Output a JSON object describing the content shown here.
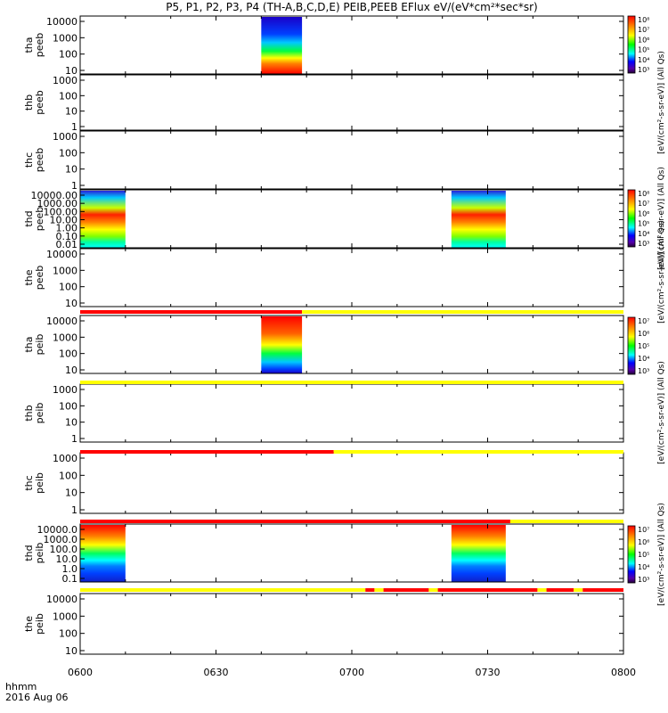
{
  "header": {
    "title": "P5, P1, P2, P3, P4 (TH-A,B,C,D,E) PEIB,PEEB EFlux eV/(eV*cm²*sec*sr)"
  },
  "footer": {
    "time_label": "hhmm",
    "date_label": "2016 Aug 06"
  },
  "colors": {
    "red": "#ff0000",
    "yellow": "#ffff00",
    "frame": "#000000"
  },
  "chart_data": {
    "type": "heatmap",
    "x_axis": {
      "range": [
        "0600",
        "0800"
      ],
      "ticks": [
        "0600",
        "0630",
        "0700",
        "0730",
        "0800"
      ]
    },
    "colorbar_label": "[eV/(cm²-s-sr-eV)] (All Qs)",
    "panels": [
      {
        "name": "tha_peeb",
        "ylabel": "tha peeb",
        "yscale": "log",
        "tick_labels": [
          "10000",
          "1000",
          "100",
          "10"
        ],
        "colorbar_ticks": [
          "10⁸",
          "10⁷",
          "10⁶",
          "10⁵",
          "10⁴",
          "10³"
        ],
        "data_spans": [
          {
            "start": "0640",
            "end": "0649"
          }
        ]
      },
      {
        "name": "thb_peeb",
        "ylabel": "thb peeb",
        "yscale": "log",
        "tick_labels": [
          "1000",
          "100",
          "10",
          "1"
        ],
        "data_spans": []
      },
      {
        "name": "thc_peeb",
        "ylabel": "thc peeb",
        "yscale": "log",
        "tick_labels": [
          "1000",
          "100",
          "10",
          "1"
        ],
        "data_spans": []
      },
      {
        "name": "thd_peeb",
        "ylabel": "thd peeb",
        "yscale": "log",
        "tick_labels": [
          "10000.00",
          "1000.00",
          "100.00",
          "10.00",
          "1.00",
          "0.10",
          "0.01"
        ],
        "colorbar_ticks": [
          "10⁸",
          "10⁷",
          "10⁶",
          "10⁵",
          "10⁴",
          "10³"
        ],
        "data_spans": [
          {
            "start": "0600",
            "end": "0610"
          },
          {
            "start": "0722",
            "end": "0734"
          }
        ]
      },
      {
        "name": "the_peeb",
        "ylabel": "the peeb",
        "yscale": "log",
        "tick_labels": [
          "10000",
          "1000",
          "100",
          "10"
        ],
        "data_spans": []
      },
      {
        "name": "tha_peib",
        "ylabel": "tha peib",
        "yscale": "log",
        "tick_labels": [
          "10000",
          "1000",
          "100",
          "10"
        ],
        "colorbar_ticks": [
          "10⁷",
          "10⁶",
          "10⁵",
          "10⁴",
          "10³"
        ],
        "data_spans": [
          {
            "start": "0640",
            "end": "0649"
          }
        ]
      },
      {
        "name": "thb_peib",
        "ylabel": "thb peib",
        "yscale": "log",
        "tick_labels": [
          "1000",
          "100",
          "10",
          "1"
        ],
        "data_spans": []
      },
      {
        "name": "thc_peib",
        "ylabel": "thc peib",
        "yscale": "log",
        "tick_labels": [
          "1000",
          "100",
          "10",
          "1"
        ],
        "data_spans": []
      },
      {
        "name": "thd_peib",
        "ylabel": "thd peib",
        "yscale": "log",
        "tick_labels": [
          "10000.0",
          "1000.0",
          "100.0",
          "10.0",
          "1.0",
          "0.1"
        ],
        "colorbar_ticks": [
          "10⁷",
          "10⁶",
          "10⁵",
          "10⁴",
          "10³"
        ],
        "data_spans": [
          {
            "start": "0600",
            "end": "0610"
          },
          {
            "start": "0722",
            "end": "0734"
          }
        ]
      },
      {
        "name": "the_peib",
        "ylabel": "the peib",
        "yscale": "log",
        "tick_labels": [
          "10000",
          "1000",
          "100",
          "10"
        ],
        "data_spans": []
      }
    ],
    "status_bars": [
      {
        "after_panel": 4,
        "segments": [
          {
            "start": "0600",
            "end": "0649",
            "color": "red"
          },
          {
            "start": "0649",
            "end": "0800",
            "color": "yellow"
          }
        ]
      },
      {
        "after_panel": 5,
        "segments": [
          {
            "start": "0600",
            "end": "0800",
            "color": "yellow"
          }
        ]
      },
      {
        "after_panel": 6,
        "segments": [
          {
            "start": "0600",
            "end": "0656",
            "color": "red"
          },
          {
            "start": "0656",
            "end": "0800",
            "color": "yellow"
          }
        ]
      },
      {
        "after_panel": 7,
        "segments": [
          {
            "start": "0600",
            "end": "0735",
            "color": "red"
          },
          {
            "start": "0735",
            "end": "0800",
            "color": "yellow"
          }
        ]
      },
      {
        "after_panel": 8,
        "segments": [
          {
            "start": "0600",
            "end": "0703",
            "color": "yellow"
          },
          {
            "start": "0703",
            "end": "0705",
            "color": "red"
          },
          {
            "start": "0705",
            "end": "0707",
            "color": "yellow"
          },
          {
            "start": "0707",
            "end": "0717",
            "color": "red"
          },
          {
            "start": "0717",
            "end": "0719",
            "color": "yellow"
          },
          {
            "start": "0719",
            "end": "0741",
            "color": "red"
          },
          {
            "start": "0741",
            "end": "0743",
            "color": "yellow"
          },
          {
            "start": "0743",
            "end": "0749",
            "color": "red"
          },
          {
            "start": "0749",
            "end": "0751",
            "color": "yellow"
          },
          {
            "start": "0751",
            "end": "0800",
            "color": "red"
          }
        ]
      }
    ]
  }
}
